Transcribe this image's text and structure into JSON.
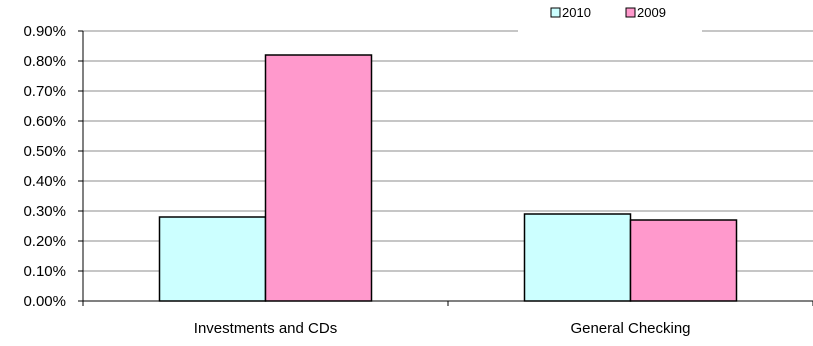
{
  "chart_data": {
    "type": "bar",
    "title": "",
    "xlabel": "",
    "ylabel": "",
    "categories": [
      "Investments and CDs",
      "General Checking"
    ],
    "series": [
      {
        "name": "2010",
        "values": [
          0.28,
          0.29
        ],
        "color": "#ccffff"
      },
      {
        "name": "2009",
        "values": [
          0.82,
          0.27
        ],
        "color": "#ff99cc"
      }
    ],
    "ylim": [
      0,
      0.9
    ],
    "yticks": [
      0,
      0.1,
      0.2,
      0.3,
      0.4,
      0.5,
      0.6,
      0.7,
      0.8,
      0.9
    ],
    "ytick_labels": [
      "0.00%",
      "0.10%",
      "0.20%",
      "0.30%",
      "0.40%",
      "0.50%",
      "0.60%",
      "0.70%",
      "0.80%",
      "0.90%"
    ],
    "grid": true,
    "legend_position": "top-right"
  }
}
